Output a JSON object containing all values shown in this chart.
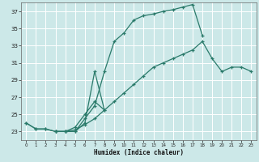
{
  "xlabel": "Humidex (Indice chaleur)",
  "bg_color": "#cce8e8",
  "grid_color": "#ffffff",
  "line_color": "#2a7a6a",
  "xlim": [
    -0.5,
    23.5
  ],
  "ylim": [
    22.0,
    38.0
  ],
  "xticks": [
    0,
    1,
    2,
    3,
    4,
    5,
    6,
    7,
    8,
    9,
    10,
    11,
    12,
    13,
    14,
    15,
    16,
    17,
    18,
    19,
    20,
    21,
    22,
    23
  ],
  "yticks": [
    23,
    25,
    27,
    29,
    31,
    33,
    35,
    37
  ],
  "line1_x": [
    0,
    1,
    2,
    3,
    4,
    5,
    6,
    7,
    8,
    9,
    10,
    11,
    12,
    13,
    14,
    15,
    16,
    17,
    18
  ],
  "line1_y": [
    24.0,
    23.3,
    23.3,
    23.0,
    23.0,
    23.0,
    24.5,
    26.0,
    30.0,
    33.5,
    34.5,
    36.0,
    36.5,
    36.7,
    37.0,
    37.2,
    37.5,
    37.8,
    34.2
  ],
  "line2_x": [
    3,
    4,
    5,
    6,
    7,
    8,
    7,
    6,
    5,
    4,
    3
  ],
  "line2_y": [
    23.0,
    23.0,
    23.0,
    24.0,
    30.0,
    25.5,
    26.5,
    25.0,
    23.5,
    23.0,
    23.0
  ],
  "line3_x": [
    0,
    1,
    2,
    3,
    4,
    5,
    6,
    7,
    8,
    9,
    10,
    11,
    12,
    13,
    14,
    15,
    16,
    17,
    18,
    19,
    20,
    21,
    22,
    23
  ],
  "line3_y": [
    24.0,
    23.3,
    23.3,
    23.0,
    23.0,
    23.2,
    23.8,
    24.5,
    25.5,
    26.5,
    27.5,
    28.5,
    29.5,
    30.5,
    31.0,
    31.5,
    32.0,
    32.5,
    33.5,
    31.5,
    30.0,
    30.5,
    30.5,
    30.0
  ]
}
